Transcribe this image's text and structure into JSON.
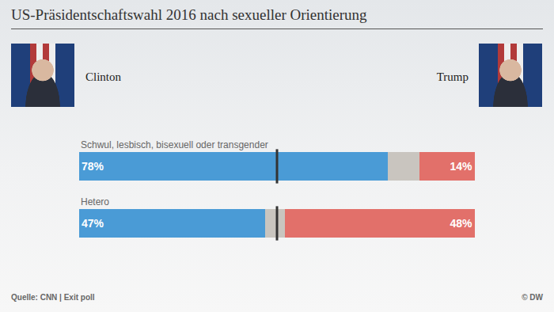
{
  "chart_data": {
    "type": "bar",
    "title": "US-Präsidentschaftswahl 2016 nach sexueller Orientierung",
    "source": "Quelle: CNN | Exit poll",
    "credit": "© DW",
    "orientation": "horizontal",
    "stacked": true,
    "data_labels": true,
    "tick_labels": false,
    "grid": false,
    "categories": [
      "Schwul, lesbisch, bisexuell oder transgender",
      "Hetero"
    ],
    "xlim": [
      0,
      100
    ],
    "reference_line": 50,
    "series": [
      {
        "name": "Clinton",
        "color": "#4a9bd6",
        "values": [
          78,
          47
        ],
        "value_labels": [
          "78%",
          "47%"
        ]
      },
      {
        "color": "#c9c5bf",
        "values": [
          8,
          5
        ]
      },
      {
        "name": "Trump",
        "color": "#e2706a",
        "values": [
          14,
          48
        ],
        "value_labels": [
          "14%",
          "48%"
        ]
      }
    ]
  }
}
